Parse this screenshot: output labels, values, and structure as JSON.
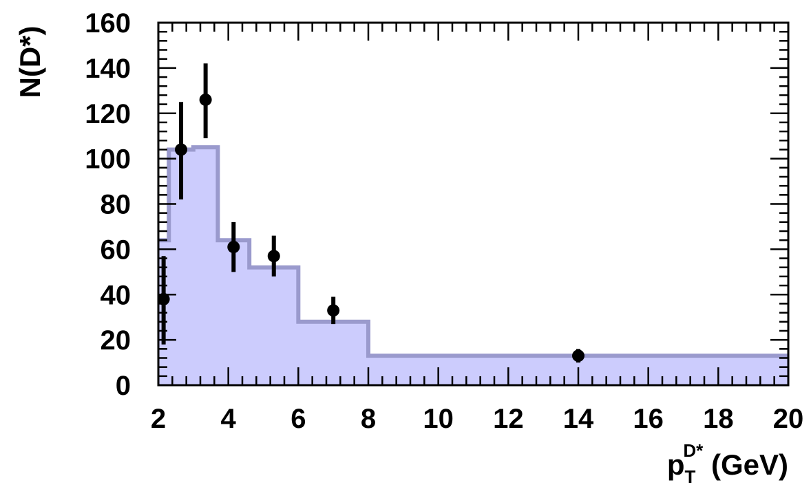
{
  "chart_data": {
    "type": "histogram-with-points",
    "xlabel": {
      "main": "p",
      "sub": "T",
      "sup": "D*",
      "unit": " (GeV)"
    },
    "ylabel": "N(D*)",
    "xlim": [
      2,
      20
    ],
    "ylim": [
      0,
      160
    ],
    "x_ticks": [
      2,
      4,
      6,
      8,
      10,
      12,
      14,
      16,
      18,
      20
    ],
    "y_ticks": [
      0,
      20,
      40,
      60,
      80,
      100,
      120,
      140,
      160
    ],
    "x_tick_labels": [
      "2",
      "4",
      "6",
      "8",
      "10",
      "12",
      "14",
      "16",
      "18",
      "20"
    ],
    "y_tick_labels": [
      "0",
      "20",
      "40",
      "60",
      "80",
      "100",
      "120",
      "140",
      "160"
    ],
    "grid": false,
    "histogram": {
      "bins": [
        {
          "x0": 2.0,
          "x1": 2.3,
          "value": 64
        },
        {
          "x0": 2.3,
          "x1": 3.0,
          "value": 104
        },
        {
          "x0": 3.0,
          "x1": 3.7,
          "value": 105
        },
        {
          "x0": 3.7,
          "x1": 4.6,
          "value": 64
        },
        {
          "x0": 4.6,
          "x1": 6.0,
          "value": 52
        },
        {
          "x0": 6.0,
          "x1": 8.0,
          "value": 28
        },
        {
          "x0": 8.0,
          "x1": 20.0,
          "value": 13
        }
      ],
      "fill_color": "#ccccfd",
      "line_color": "#9a9acd"
    },
    "points": [
      {
        "x": 2.15,
        "y": 38,
        "err_low": 20,
        "err_high": 19
      },
      {
        "x": 2.65,
        "y": 104,
        "err_low": 22,
        "err_high": 21
      },
      {
        "x": 3.35,
        "y": 126,
        "err_low": 17,
        "err_high": 16
      },
      {
        "x": 4.15,
        "y": 61,
        "err_low": 11,
        "err_high": 11
      },
      {
        "x": 5.3,
        "y": 57,
        "err_low": 9,
        "err_high": 9
      },
      {
        "x": 7.0,
        "y": 33,
        "err_low": 6,
        "err_high": 6
      },
      {
        "x": 14.0,
        "y": 13,
        "err_low": 3,
        "err_high": 3
      }
    ],
    "point_color": "#000000"
  }
}
